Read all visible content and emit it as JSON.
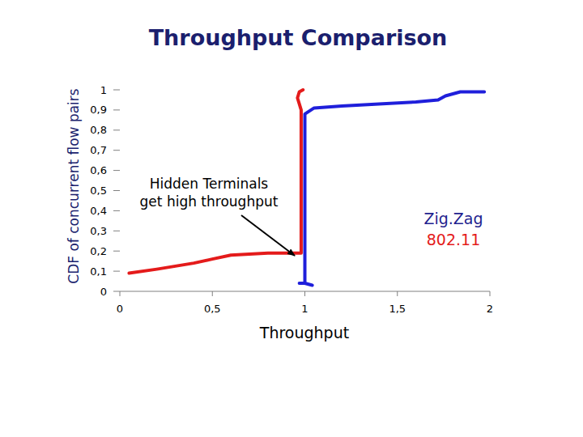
{
  "chart_data": {
    "type": "line",
    "title": "Throughput Comparison",
    "x_label": "Throughput",
    "y_label": "CDF of concurrent flow pairs",
    "xlim": [
      0,
      2
    ],
    "ylim": [
      0,
      1
    ],
    "xticks": [
      0,
      {
        "value": 0.5,
        "label": "0,5"
      },
      1,
      {
        "value": 1.5,
        "label": "1,5"
      },
      2
    ],
    "yticks": [
      0,
      {
        "value": 0.1,
        "label": "0,1"
      },
      {
        "value": 0.2,
        "label": "0,2"
      },
      {
        "value": 0.3,
        "label": "0,3"
      },
      {
        "value": 0.4,
        "label": "0,4"
      },
      {
        "value": 0.5,
        "label": "0,5"
      },
      {
        "value": 0.6,
        "label": "0,6"
      },
      {
        "value": 0.7,
        "label": "0,7"
      },
      {
        "value": 0.8,
        "label": "0,8"
      },
      {
        "value": 0.9,
        "label": "0,9"
      },
      1
    ],
    "grid": false,
    "legend": "right",
    "annotations": [
      {
        "lines": [
          "Hidden Terminals",
          "get high throughput"
        ]
      }
    ],
    "series": [
      {
        "name": "Zig.Zag",
        "color": "#1f1fdb",
        "x": [
          0.97,
          1.0,
          1.04,
          1.0,
          1.0,
          1.05,
          1.2,
          1.4,
          1.6,
          1.72,
          1.76,
          1.84,
          1.97
        ],
        "values": [
          0.04,
          0.04,
          0.03,
          0.04,
          0.88,
          0.91,
          0.92,
          0.93,
          0.94,
          0.95,
          0.97,
          0.99,
          0.99
        ]
      },
      {
        "name": "802.11",
        "color": "#e41b1b",
        "x": [
          0.05,
          0.2,
          0.4,
          0.5,
          0.6,
          0.8,
          0.98,
          0.98,
          0.97,
          0.96,
          0.97,
          0.99
        ],
        "values": [
          0.09,
          0.11,
          0.14,
          0.16,
          0.18,
          0.19,
          0.19,
          0.9,
          0.93,
          0.96,
          0.99,
          1.0
        ]
      }
    ]
  }
}
